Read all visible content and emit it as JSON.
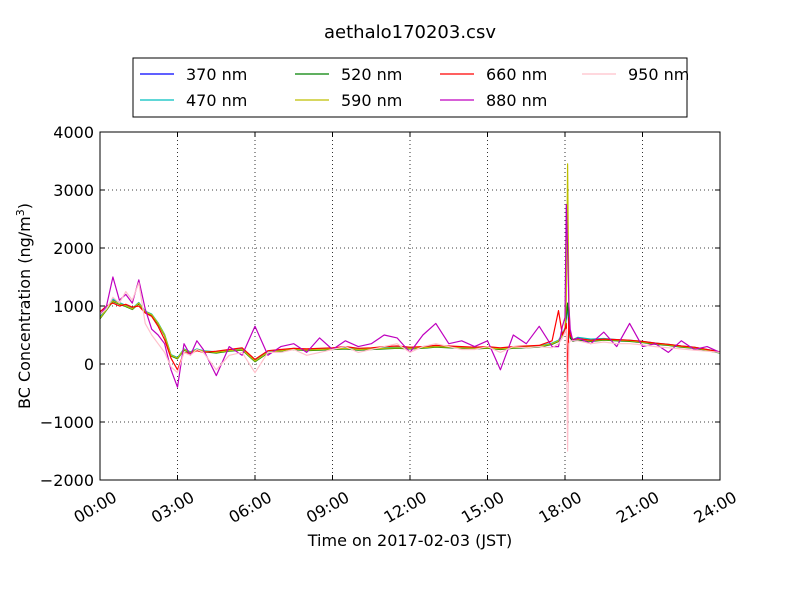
{
  "chart_data": {
    "type": "line",
    "title": "aethalo170203.csv",
    "xlabel": "Time on 2017-02-03 (JST)",
    "ylabel": "BC Concentration (ng/m³)",
    "ylabel_parts": {
      "main": "BC Concentration (ng/m",
      "sup": "3",
      "close": ")"
    },
    "xlim": [
      0,
      24
    ],
    "ylim": [
      -2000,
      4000
    ],
    "x_unit": "hours",
    "x_ticks": [
      0,
      3,
      6,
      9,
      12,
      15,
      18,
      21,
      24
    ],
    "x_tick_labels": [
      "00:00",
      "03:00",
      "06:00",
      "09:00",
      "12:00",
      "15:00",
      "18:00",
      "21:00",
      "24:00"
    ],
    "y_ticks": [
      -2000,
      -1000,
      0,
      1000,
      2000,
      3000,
      4000
    ],
    "y_tick_labels": [
      "−2000",
      "−1000",
      "0",
      "1000",
      "2000",
      "3000",
      "4000"
    ],
    "grid": true,
    "legend_position": "top-center",
    "series": [
      {
        "name": "370 nm",
        "color": "#0000ff"
      },
      {
        "name": "470 nm",
        "color": "#00bfbf"
      },
      {
        "name": "520 nm",
        "color": "#008000"
      },
      {
        "name": "590 nm",
        "color": "#bfbf00"
      },
      {
        "name": "660 nm",
        "color": "#ff0000"
      },
      {
        "name": "880 nm",
        "color": "#bf00bf"
      },
      {
        "name": "950 nm",
        "color": "#ffc0cb"
      }
    ],
    "series_x": [
      0,
      0.25,
      0.5,
      0.75,
      1.0,
      1.25,
      1.5,
      1.75,
      2.0,
      2.25,
      2.5,
      2.75,
      3.0,
      3.25,
      3.5,
      3.75,
      4.0,
      4.5,
      5.0,
      5.5,
      6.0,
      6.5,
      7.0,
      7.5,
      8.0,
      8.5,
      9.0,
      9.5,
      10.0,
      10.5,
      11.0,
      11.5,
      12.0,
      12.5,
      13.0,
      13.5,
      14.0,
      14.5,
      15.0,
      15.5,
      16.0,
      16.5,
      17.0,
      17.5,
      17.75,
      17.9,
      18.0,
      18.05,
      18.1,
      18.15,
      18.2,
      18.3,
      18.5,
      19.0,
      19.5,
      20.0,
      20.5,
      21.0,
      21.5,
      22.0,
      22.5,
      23.0,
      23.5,
      24.0
    ],
    "series_y": [
      [
        800,
        950,
        1100,
        1050,
        1000,
        950,
        1050,
        900,
        850,
        700,
        500,
        150,
        100,
        250,
        200,
        250,
        220,
        200,
        230,
        250,
        50,
        200,
        230,
        260,
        240,
        250,
        260,
        270,
        250,
        260,
        270,
        280,
        270,
        280,
        300,
        290,
        280,
        270,
        280,
        260,
        280,
        290,
        300,
        350,
        400,
        500,
        600,
        800,
        1000,
        650,
        450,
        400,
        420,
        400,
        420,
        410,
        400,
        380,
        350,
        330,
        300,
        280,
        240,
        200
      ],
      [
        820,
        960,
        1120,
        1060,
        1010,
        960,
        1060,
        910,
        860,
        710,
        510,
        160,
        110,
        260,
        210,
        260,
        230,
        210,
        240,
        260,
        60,
        210,
        240,
        270,
        250,
        260,
        270,
        280,
        260,
        270,
        280,
        290,
        280,
        290,
        310,
        300,
        290,
        280,
        290,
        270,
        290,
        300,
        310,
        360,
        410,
        520,
        620,
        820,
        1020,
        680,
        470,
        420,
        460,
        430,
        440,
        420,
        410,
        390,
        360,
        340,
        310,
        290,
        250,
        210
      ],
      [
        780,
        930,
        1080,
        1030,
        990,
        940,
        1040,
        890,
        840,
        690,
        490,
        140,
        90,
        240,
        190,
        240,
        210,
        190,
        220,
        240,
        40,
        190,
        220,
        250,
        230,
        240,
        250,
        260,
        240,
        250,
        260,
        270,
        260,
        270,
        290,
        280,
        270,
        260,
        270,
        250,
        270,
        280,
        290,
        340,
        390,
        500,
        600,
        850,
        1050,
        700,
        450,
        390,
        410,
        390,
        410,
        400,
        390,
        370,
        340,
        320,
        290,
        270,
        230,
        190
      ],
      [
        790,
        940,
        1090,
        1040,
        1000,
        950,
        1050,
        900,
        850,
        700,
        500,
        150,
        100,
        250,
        200,
        250,
        220,
        200,
        230,
        250,
        50,
        200,
        230,
        260,
        240,
        250,
        260,
        270,
        250,
        260,
        270,
        280,
        270,
        280,
        300,
        290,
        280,
        270,
        280,
        260,
        280,
        290,
        300,
        350,
        400,
        500,
        600,
        1100,
        3450,
        1000,
        500,
        420,
        430,
        400,
        420,
        410,
        400,
        380,
        350,
        330,
        300,
        280,
        240,
        200
      ],
      [
        900,
        1000,
        1050,
        1000,
        1030,
        980,
        1000,
        880,
        820,
        650,
        420,
        100,
        -100,
        200,
        180,
        230,
        200,
        220,
        250,
        280,
        80,
        230,
        250,
        270,
        260,
        270,
        280,
        300,
        270,
        280,
        300,
        310,
        290,
        300,
        320,
        310,
        300,
        290,
        300,
        280,
        300,
        310,
        320,
        400,
        920,
        500,
        600,
        700,
        -300,
        800,
        500,
        420,
        440,
        410,
        430,
        420,
        410,
        390,
        360,
        340,
        310,
        290,
        250,
        210
      ],
      [
        850,
        1000,
        1500,
        1100,
        1200,
        1050,
        1450,
        950,
        600,
        500,
        350,
        -100,
        -400,
        350,
        150,
        400,
        250,
        -200,
        300,
        150,
        650,
        150,
        300,
        350,
        200,
        450,
        250,
        400,
        300,
        350,
        500,
        450,
        200,
        500,
        700,
        350,
        400,
        300,
        400,
        -100,
        500,
        350,
        650,
        300,
        300,
        650,
        800,
        2750,
        2000,
        1000,
        600,
        400,
        450,
        350,
        550,
        300,
        700,
        300,
        350,
        200,
        400,
        250,
        300,
        200
      ],
      [
        850,
        950,
        1150,
        1050,
        1250,
        1100,
        1400,
        700,
        500,
        350,
        200,
        -50,
        -150,
        200,
        150,
        250,
        200,
        -100,
        150,
        200,
        -150,
        200,
        200,
        250,
        150,
        200,
        250,
        300,
        200,
        250,
        300,
        350,
        200,
        300,
        350,
        300,
        250,
        250,
        300,
        200,
        300,
        280,
        300,
        280,
        350,
        450,
        550,
        600,
        -1500,
        350,
        400,
        400,
        400,
        350,
        380,
        350,
        350,
        330,
        300,
        280,
        260,
        240,
        220,
        200
      ]
    ]
  }
}
